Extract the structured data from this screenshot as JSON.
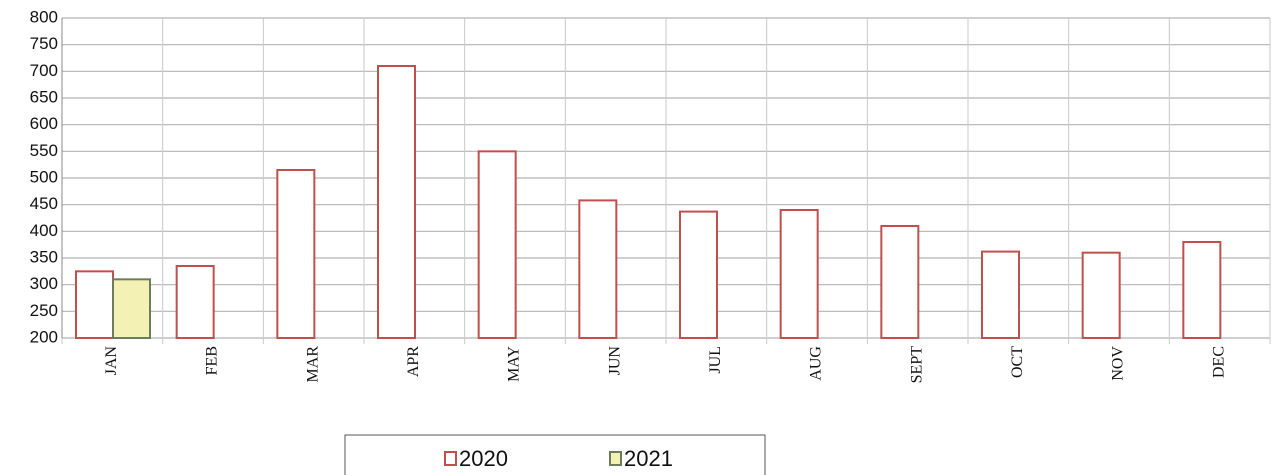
{
  "chart_data": {
    "type": "bar",
    "categories": [
      "JAN",
      "FEB",
      "MAR",
      "APR",
      "MAY",
      "JUN",
      "JUL",
      "AUG",
      "SEPT",
      "OCT",
      "NOV",
      "DEC"
    ],
    "series": [
      {
        "name": "2020",
        "color": "#ffffff",
        "edge": "#c0504d",
        "values": [
          325,
          335,
          515,
          710,
          550,
          458,
          437,
          440,
          410,
          362,
          360,
          380
        ]
      },
      {
        "name": "2021",
        "color": "#f4f1b4",
        "edge": "#6b7d5c",
        "values": [
          310,
          null,
          null,
          null,
          null,
          null,
          null,
          null,
          null,
          null,
          null,
          null
        ]
      }
    ],
    "ylim": [
      200,
      800
    ],
    "yticks": [
      200,
      250,
      300,
      350,
      400,
      450,
      500,
      550,
      600,
      650,
      700,
      750,
      800
    ],
    "grid": true
  }
}
